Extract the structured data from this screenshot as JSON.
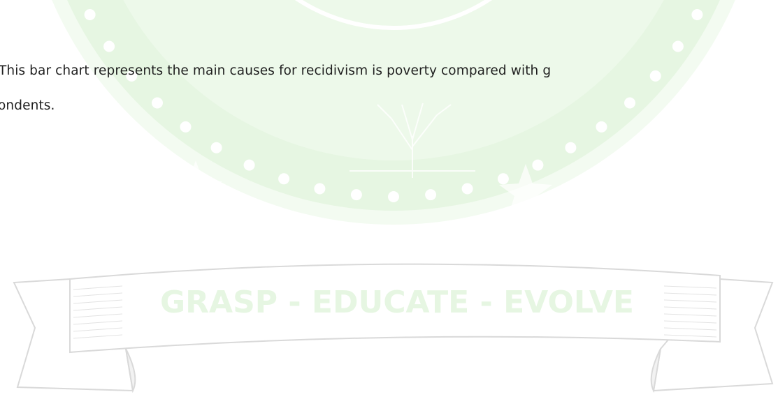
{
  "paragraph": {
    "lines": [
      "This bar chart represents the main causes for recidivism is poverty compared with g",
      "ondents."
    ]
  },
  "watermark": {
    "motto": "GRASP - EDUCATE - EVOLVE"
  }
}
